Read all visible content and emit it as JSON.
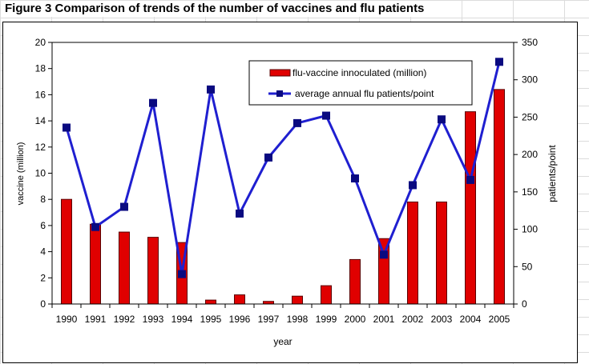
{
  "title": "Figure 3  Comparison of trends of the number of vaccines and flu patients",
  "colors": {
    "bar_fill": "#e00000",
    "bar_edge": "#5a0000",
    "line": "#1f1fd0",
    "marker": "#0a0a80"
  },
  "chart_data": {
    "type": "bar+line",
    "categories": [
      "1990",
      "1991",
      "1992",
      "1993",
      "1994",
      "1995",
      "1996",
      "1997",
      "1998",
      "1999",
      "2000",
      "2001",
      "2002",
      "2003",
      "2004",
      "2005"
    ],
    "series": [
      {
        "name": "flu-vaccine innoculated (million)",
        "type": "bar",
        "axis": "left",
        "values": [
          8.0,
          6.1,
          5.5,
          5.1,
          4.7,
          0.3,
          0.7,
          0.2,
          0.6,
          1.4,
          3.4,
          5.0,
          7.8,
          7.8,
          14.7,
          16.4
        ]
      },
      {
        "name": "average annual flu patients/point",
        "type": "line",
        "axis": "right",
        "values": [
          236,
          103,
          130,
          269,
          40,
          287,
          121,
          196,
          242,
          252,
          168,
          66,
          159,
          247,
          166,
          324
        ]
      }
    ],
    "xlabel": "year",
    "ylabel_left": "vaccine (million)",
    "ylabel_right": "patients/point",
    "ylim_left": [
      0,
      20
    ],
    "ylim_right": [
      0,
      350
    ],
    "yticks_left": [
      0,
      2,
      4,
      6,
      8,
      10,
      12,
      14,
      16,
      18,
      20
    ],
    "yticks_right": [
      0,
      50,
      100,
      150,
      200,
      250,
      300,
      350
    ],
    "grid": false,
    "legend_position": "top-right"
  }
}
